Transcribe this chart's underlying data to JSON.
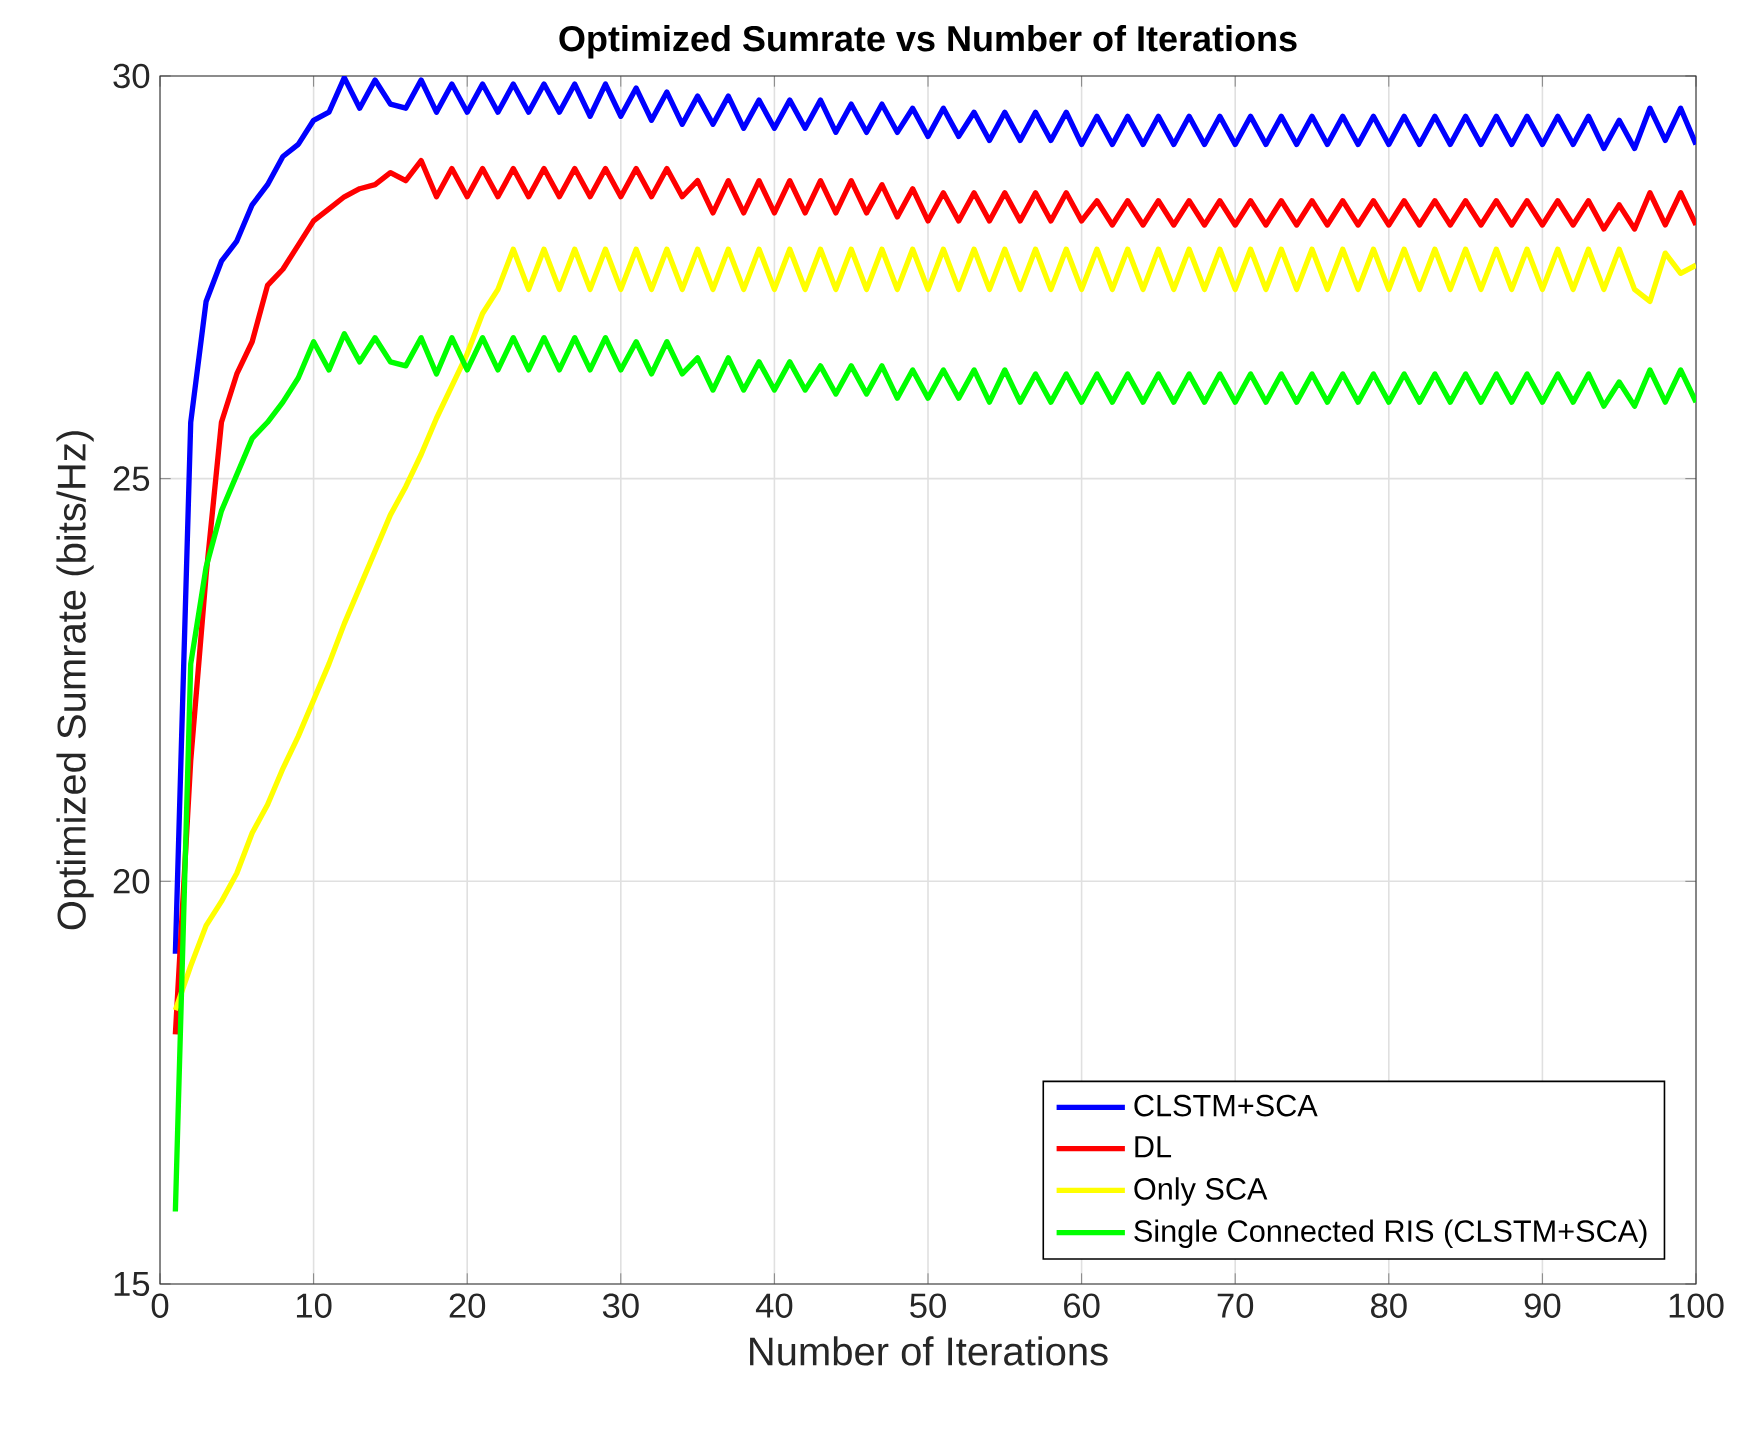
{
  "chart_data": {
    "type": "line",
    "title": "Optimized Sumrate vs Number of Iterations",
    "xlabel": "Number of Iterations",
    "ylabel": "Optimized Sumrate (bits/Hz)",
    "x": [
      1,
      2,
      3,
      4,
      5,
      6,
      7,
      8,
      9,
      10,
      11,
      12,
      13,
      14,
      15,
      16,
      17,
      18,
      19,
      20,
      21,
      22,
      23,
      24,
      25,
      26,
      27,
      28,
      29,
      30,
      31,
      32,
      33,
      34,
      35,
      36,
      37,
      38,
      39,
      40,
      41,
      42,
      43,
      44,
      45,
      46,
      47,
      48,
      49,
      50,
      51,
      52,
      53,
      54,
      55,
      56,
      57,
      58,
      59,
      60,
      61,
      62,
      63,
      64,
      65,
      66,
      67,
      68,
      69,
      70,
      71,
      72,
      73,
      74,
      75,
      76,
      77,
      78,
      79,
      80,
      81,
      82,
      83,
      84,
      85,
      86,
      87,
      88,
      89,
      90,
      91,
      92,
      93,
      94,
      95,
      96,
      97,
      98,
      99,
      100
    ],
    "xlim": [
      0,
      100
    ],
    "xticks": [
      0,
      10,
      20,
      30,
      40,
      50,
      60,
      70,
      80,
      90,
      100
    ],
    "ylim": [
      15,
      30
    ],
    "yticks": [
      15,
      20,
      25,
      30
    ],
    "grid": true,
    "legend": "bottom right",
    "series": [
      {
        "name": "CLSTM+SCA",
        "color": "#0000ff",
        "values": [
          19.1,
          25.7,
          27.2,
          27.7,
          27.95,
          28.4,
          28.65,
          29.0,
          29.15,
          29.45,
          29.55,
          29.98,
          29.6,
          29.95,
          29.65,
          29.6,
          29.95,
          29.55,
          29.9,
          29.55,
          29.9,
          29.55,
          29.9,
          29.55,
          29.9,
          29.55,
          29.9,
          29.5,
          29.9,
          29.5,
          29.85,
          29.45,
          29.8,
          29.4,
          29.75,
          29.4,
          29.75,
          29.35,
          29.7,
          29.35,
          29.7,
          29.35,
          29.7,
          29.3,
          29.65,
          29.3,
          29.65,
          29.3,
          29.6,
          29.25,
          29.6,
          29.25,
          29.55,
          29.2,
          29.55,
          29.2,
          29.55,
          29.2,
          29.55,
          29.15,
          29.5,
          29.15,
          29.5,
          29.15,
          29.5,
          29.15,
          29.5,
          29.15,
          29.5,
          29.15,
          29.5,
          29.15,
          29.5,
          29.15,
          29.5,
          29.15,
          29.5,
          29.15,
          29.5,
          29.15,
          29.5,
          29.15,
          29.5,
          29.15,
          29.5,
          29.15,
          29.5,
          29.15,
          29.5,
          29.15,
          29.5,
          29.15,
          29.5,
          29.1,
          29.45,
          29.1,
          29.6,
          29.2,
          29.6,
          29.15
        ]
      },
      {
        "name": "DL",
        "color": "#ff0000",
        "values": [
          18.1,
          21.5,
          23.8,
          25.7,
          26.3,
          26.7,
          27.4,
          27.6,
          27.9,
          28.2,
          28.35,
          28.5,
          28.6,
          28.65,
          28.8,
          28.7,
          28.95,
          28.5,
          28.85,
          28.5,
          28.85,
          28.5,
          28.85,
          28.5,
          28.85,
          28.5,
          28.85,
          28.5,
          28.85,
          28.5,
          28.85,
          28.5,
          28.85,
          28.5,
          28.7,
          28.3,
          28.7,
          28.3,
          28.7,
          28.3,
          28.7,
          28.3,
          28.7,
          28.3,
          28.7,
          28.3,
          28.65,
          28.25,
          28.6,
          28.2,
          28.55,
          28.2,
          28.55,
          28.2,
          28.55,
          28.2,
          28.55,
          28.2,
          28.55,
          28.2,
          28.45,
          28.15,
          28.45,
          28.15,
          28.45,
          28.15,
          28.45,
          28.15,
          28.45,
          28.15,
          28.45,
          28.15,
          28.45,
          28.15,
          28.45,
          28.15,
          28.45,
          28.15,
          28.45,
          28.15,
          28.45,
          28.15,
          28.45,
          28.15,
          28.45,
          28.15,
          28.45,
          28.15,
          28.45,
          28.15,
          28.45,
          28.15,
          28.45,
          28.1,
          28.4,
          28.1,
          28.55,
          28.15,
          28.55,
          28.15
        ]
      },
      {
        "name": "Only SCA",
        "color": "#ffff00",
        "values": [
          18.4,
          18.95,
          19.45,
          19.75,
          20.1,
          20.6,
          20.95,
          21.4,
          21.8,
          22.25,
          22.7,
          23.2,
          23.65,
          24.1,
          24.55,
          24.9,
          25.3,
          25.75,
          26.15,
          26.55,
          27.05,
          27.35,
          27.85,
          27.35,
          27.85,
          27.35,
          27.85,
          27.35,
          27.85,
          27.35,
          27.85,
          27.35,
          27.85,
          27.35,
          27.85,
          27.35,
          27.85,
          27.35,
          27.85,
          27.35,
          27.85,
          27.35,
          27.85,
          27.35,
          27.85,
          27.35,
          27.85,
          27.35,
          27.85,
          27.35,
          27.85,
          27.35,
          27.85,
          27.35,
          27.85,
          27.35,
          27.85,
          27.35,
          27.85,
          27.35,
          27.85,
          27.35,
          27.85,
          27.35,
          27.85,
          27.35,
          27.85,
          27.35,
          27.85,
          27.35,
          27.85,
          27.35,
          27.85,
          27.35,
          27.85,
          27.35,
          27.85,
          27.35,
          27.85,
          27.35,
          27.85,
          27.35,
          27.85,
          27.35,
          27.85,
          27.35,
          27.85,
          27.35,
          27.85,
          27.35,
          27.85,
          27.35,
          27.85,
          27.35,
          27.85,
          27.35,
          27.2,
          27.8,
          27.55,
          27.65
        ]
      },
      {
        "name": "Single Connected RIS (CLSTM+SCA)",
        "color": "#00ff00",
        "values": [
          15.9,
          22.7,
          23.9,
          24.6,
          25.05,
          25.5,
          25.7,
          25.95,
          26.25,
          26.7,
          26.35,
          26.8,
          26.45,
          26.75,
          26.45,
          26.4,
          26.75,
          26.3,
          26.75,
          26.35,
          26.75,
          26.35,
          26.75,
          26.35,
          26.75,
          26.35,
          26.75,
          26.35,
          26.75,
          26.35,
          26.7,
          26.3,
          26.7,
          26.3,
          26.5,
          26.1,
          26.5,
          26.1,
          26.45,
          26.1,
          26.45,
          26.1,
          26.4,
          26.05,
          26.4,
          26.05,
          26.4,
          26.0,
          26.35,
          26.0,
          26.35,
          26.0,
          26.35,
          25.95,
          26.35,
          25.95,
          26.3,
          25.95,
          26.3,
          25.95,
          26.3,
          25.95,
          26.3,
          25.95,
          26.3,
          25.95,
          26.3,
          25.95,
          26.3,
          25.95,
          26.3,
          25.95,
          26.3,
          25.95,
          26.3,
          25.95,
          26.3,
          25.95,
          26.3,
          25.95,
          26.3,
          25.95,
          26.3,
          25.95,
          26.3,
          25.95,
          26.3,
          25.95,
          26.3,
          25.95,
          26.3,
          25.95,
          26.3,
          25.9,
          26.2,
          25.9,
          26.35,
          25.95,
          26.35,
          25.95
        ]
      }
    ]
  }
}
